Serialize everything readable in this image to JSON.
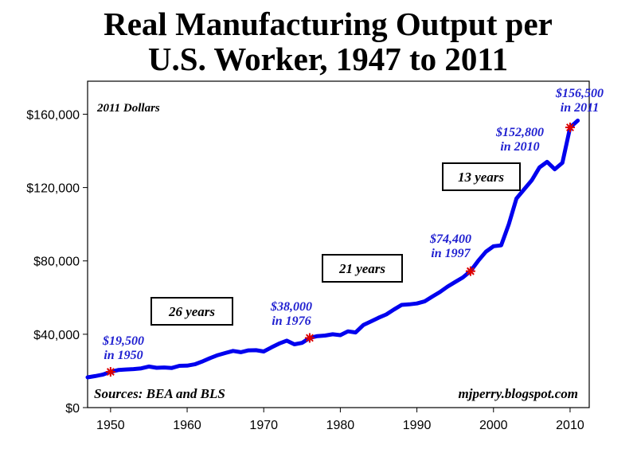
{
  "chart_data": {
    "type": "line",
    "title_lines": [
      "Real Manufacturing Output per",
      "U.S. Worker, 1947 to 2011"
    ],
    "units_note": "2011 Dollars",
    "source_note": "Sources: BEA and BLS",
    "credit": "mjperry.blogspot.com",
    "ylim": [
      0,
      178000
    ],
    "xlim": [
      1947,
      2012.5
    ],
    "yticks": [
      0,
      40000,
      80000,
      120000,
      160000
    ],
    "ytick_labels": [
      "$0",
      "$40,000",
      "$80,000",
      "$120,000",
      "$160,000"
    ],
    "xticks": [
      1950,
      1960,
      1970,
      1980,
      1990,
      2000,
      2010
    ],
    "xtick_labels": [
      "1950",
      "1960",
      "1970",
      "1980",
      "1990",
      "2000",
      "2010"
    ],
    "grid": false,
    "line_color": "#0000ee",
    "marker_color": "#dd0000",
    "series": [
      {
        "x": [
          1947,
          1948,
          1949,
          1950,
          1951,
          1952,
          1953,
          1954,
          1955,
          1956,
          1957,
          1958,
          1959,
          1960,
          1961,
          1962,
          1963,
          1964,
          1965,
          1966,
          1967,
          1968,
          1969,
          1970,
          1971,
          1972,
          1973,
          1974,
          1975,
          1976,
          1977,
          1978,
          1979,
          1980,
          1981,
          1982,
          1983,
          1984,
          1985,
          1986,
          1987,
          1988,
          1989,
          1990,
          1991,
          1992,
          1993,
          1994,
          1995,
          1996,
          1997,
          1998,
          1999,
          2000,
          2001,
          2002,
          2003,
          2004,
          2005,
          2006,
          2007,
          2008,
          2009,
          2010,
          2011
        ],
        "values": [
          16500,
          17200,
          18000,
          19500,
          20500,
          20800,
          21000,
          21400,
          22400,
          21700,
          21900,
          21600,
          22800,
          22900,
          23600,
          25200,
          27000,
          28600,
          29800,
          30900,
          30200,
          31200,
          31300,
          30600,
          32800,
          34900,
          36500,
          34500,
          35300,
          38000,
          39000,
          39300,
          40000,
          39500,
          41600,
          41000,
          45000,
          47000,
          49000,
          50800,
          53500,
          56000,
          56300,
          56800,
          57900,
          60500,
          63000,
          66000,
          68500,
          71000,
          74400,
          80000,
          85000,
          88000,
          88500,
          100000,
          114000,
          119000,
          124000,
          131000,
          134000,
          130000,
          133500,
          152800,
          156500
        ]
      }
    ],
    "highlights": [
      {
        "x": 1950,
        "y": 19500,
        "label_lines": [
          "$19,500",
          "in 1950"
        ]
      },
      {
        "x": 1976,
        "y": 38000,
        "label_lines": [
          "$38,000",
          "in 1976"
        ]
      },
      {
        "x": 1997,
        "y": 74400,
        "label_lines": [
          "$74,400",
          "in 1997"
        ]
      },
      {
        "x": 2010,
        "y": 152800,
        "label_lines": [
          "$152,800",
          "in 2010"
        ]
      },
      {
        "x": 2011,
        "y": 156500,
        "label_lines": [
          "$156,500",
          "in 2011"
        ]
      }
    ],
    "interval_labels": [
      "26 years",
      "21 years",
      "13 years"
    ]
  }
}
